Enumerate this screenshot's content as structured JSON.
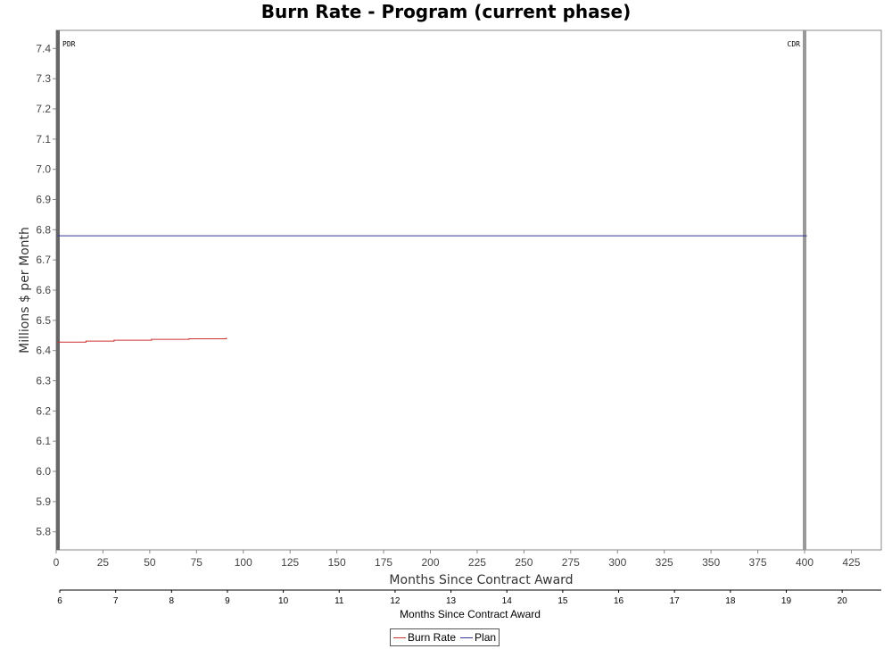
{
  "chart_data": {
    "type": "line",
    "title": "Burn Rate - Program (current phase)",
    "ylabel": "Millions $ per Month",
    "xlabel": "Months Since Contract Award",
    "ylim": [
      5.74,
      7.46
    ],
    "yticks": [
      "7.4",
      "7.3",
      "7.2",
      "7.1",
      "7.0",
      "6.9",
      "6.8",
      "6.7",
      "6.6",
      "6.5",
      "6.4",
      "6.3",
      "6.2",
      "6.1",
      "6.0",
      "5.9",
      "5.8"
    ],
    "xlim": [
      0,
      441
    ],
    "xticks": [
      "0",
      "25",
      "50",
      "75",
      "100",
      "125",
      "150",
      "175",
      "200",
      "225",
      "250",
      "275",
      "300",
      "325",
      "350",
      "375",
      "400",
      "425"
    ],
    "secondary_x": {
      "label": "Months Since Contract Award",
      "lim": [
        6,
        20.7
      ],
      "ticks": [
        "6",
        "7",
        "8",
        "9",
        "10",
        "11",
        "12",
        "13",
        "14",
        "15",
        "16",
        "17",
        "18",
        "19",
        "20"
      ]
    },
    "markers": [
      {
        "label": "PDR",
        "x": 0
      },
      {
        "label": "CDR",
        "x": 400
      }
    ],
    "series": [
      {
        "name": "Burn Rate",
        "color": "#cc3333",
        "x": [
          0,
          15,
          30,
          50,
          70,
          90
        ],
        "y": [
          6.428,
          6.431,
          6.434,
          6.437,
          6.439,
          6.441
        ]
      },
      {
        "name": "Plan",
        "color": "#333399",
        "x": [
          0,
          400
        ],
        "y": [
          6.78,
          6.78
        ]
      }
    ],
    "legend": "bottom-center",
    "grid": false
  }
}
